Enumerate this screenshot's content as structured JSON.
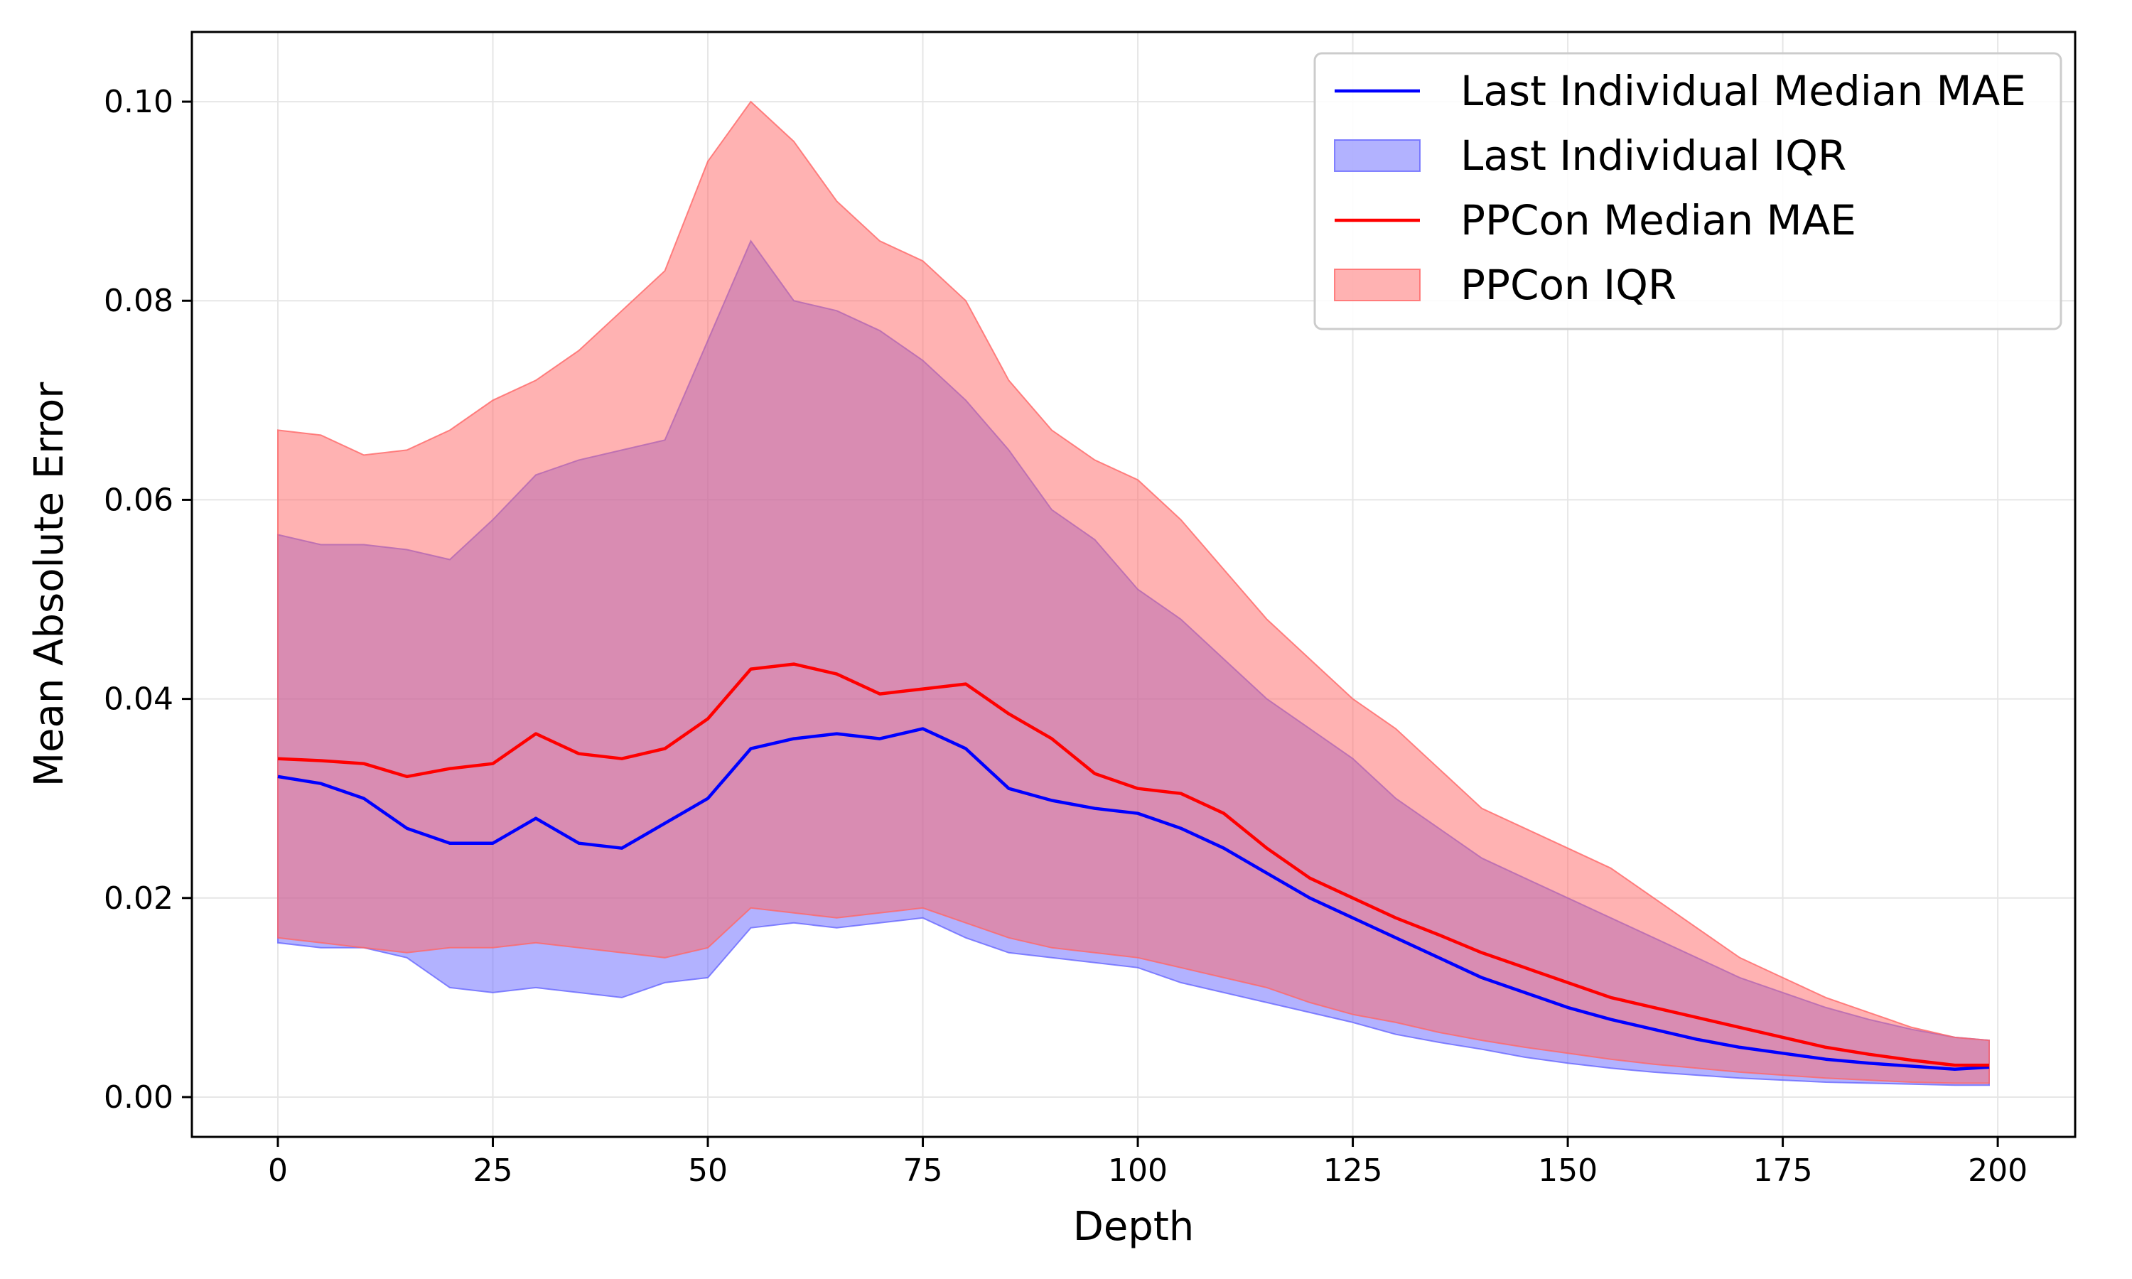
{
  "chart_data": {
    "type": "line",
    "xlabel": "Depth",
    "ylabel": "Mean Absolute Error",
    "xlim": [
      -10,
      209
    ],
    "ylim": [
      -0.004,
      0.107
    ],
    "xticks": [
      0,
      25,
      50,
      75,
      100,
      125,
      150,
      175,
      200
    ],
    "xtick_labels": [
      "0",
      "25",
      "50",
      "75",
      "100",
      "125",
      "150",
      "175",
      "200"
    ],
    "yticks": [
      0.0,
      0.02,
      0.04,
      0.06,
      0.08,
      0.1
    ],
    "ytick_labels": [
      "0.00",
      "0.02",
      "0.04",
      "0.06",
      "0.08",
      "0.10"
    ],
    "grid": true,
    "legend_position": "top-right",
    "x": [
      0,
      5,
      10,
      15,
      20,
      25,
      30,
      35,
      40,
      45,
      50,
      55,
      60,
      65,
      70,
      75,
      80,
      85,
      90,
      95,
      100,
      105,
      110,
      115,
      120,
      125,
      130,
      135,
      140,
      145,
      150,
      155,
      160,
      165,
      170,
      175,
      180,
      185,
      190,
      195,
      199
    ],
    "series": [
      {
        "name": "Last Individual Median MAE",
        "kind": "line",
        "color": "#0000ff",
        "values": [
          0.0322,
          0.0315,
          0.03,
          0.027,
          0.0255,
          0.0255,
          0.028,
          0.0255,
          0.025,
          0.0275,
          0.03,
          0.035,
          0.036,
          0.0365,
          0.036,
          0.037,
          0.035,
          0.031,
          0.0298,
          0.029,
          0.0285,
          0.027,
          0.025,
          0.0225,
          0.02,
          0.018,
          0.016,
          0.014,
          0.012,
          0.0105,
          0.009,
          0.0078,
          0.0068,
          0.0058,
          0.005,
          0.0044,
          0.0038,
          0.0034,
          0.0031,
          0.0028,
          0.003
        ]
      },
      {
        "name": "Last Individual IQR",
        "kind": "band",
        "color": "#6666ff",
        "lower": [
          0.0155,
          0.015,
          0.015,
          0.014,
          0.011,
          0.0105,
          0.011,
          0.0105,
          0.01,
          0.0115,
          0.012,
          0.017,
          0.0175,
          0.017,
          0.0175,
          0.018,
          0.016,
          0.0145,
          0.014,
          0.0135,
          0.013,
          0.0115,
          0.0105,
          0.0095,
          0.0085,
          0.0075,
          0.0063,
          0.0055,
          0.0048,
          0.004,
          0.0034,
          0.0029,
          0.0025,
          0.0022,
          0.0019,
          0.0017,
          0.0015,
          0.0014,
          0.0013,
          0.0012,
          0.0012
        ],
        "upper": [
          0.0565,
          0.0555,
          0.0555,
          0.055,
          0.054,
          0.058,
          0.0625,
          0.064,
          0.065,
          0.066,
          0.076,
          0.086,
          0.08,
          0.079,
          0.077,
          0.074,
          0.07,
          0.065,
          0.059,
          0.056,
          0.051,
          0.048,
          0.044,
          0.04,
          0.037,
          0.034,
          0.03,
          0.027,
          0.024,
          0.022,
          0.02,
          0.018,
          0.016,
          0.014,
          0.012,
          0.0105,
          0.009,
          0.0078,
          0.0068,
          0.006,
          0.0057
        ]
      },
      {
        "name": "PPCon Median MAE",
        "kind": "line",
        "color": "#ff0000",
        "values": [
          0.034,
          0.0338,
          0.0335,
          0.0322,
          0.033,
          0.0335,
          0.0365,
          0.0345,
          0.034,
          0.035,
          0.038,
          0.043,
          0.0435,
          0.0425,
          0.0405,
          0.041,
          0.0415,
          0.0385,
          0.036,
          0.0325,
          0.031,
          0.0305,
          0.0285,
          0.025,
          0.022,
          0.02,
          0.018,
          0.0163,
          0.0145,
          0.013,
          0.0115,
          0.01,
          0.009,
          0.008,
          0.007,
          0.006,
          0.005,
          0.0043,
          0.0037,
          0.0032,
          0.0032
        ]
      },
      {
        "name": "PPCon IQR",
        "kind": "band",
        "color": "#ff6666",
        "lower": [
          0.016,
          0.0155,
          0.015,
          0.0145,
          0.015,
          0.015,
          0.0155,
          0.015,
          0.0145,
          0.014,
          0.015,
          0.019,
          0.0185,
          0.018,
          0.0185,
          0.019,
          0.0175,
          0.016,
          0.015,
          0.0145,
          0.014,
          0.013,
          0.012,
          0.011,
          0.0095,
          0.0083,
          0.0075,
          0.0065,
          0.0057,
          0.005,
          0.0044,
          0.0038,
          0.0033,
          0.0029,
          0.0025,
          0.0022,
          0.0019,
          0.0017,
          0.0015,
          0.0014,
          0.0014
        ],
        "upper": [
          0.067,
          0.0665,
          0.0645,
          0.065,
          0.067,
          0.07,
          0.072,
          0.075,
          0.079,
          0.083,
          0.094,
          0.1,
          0.096,
          0.09,
          0.086,
          0.084,
          0.08,
          0.072,
          0.067,
          0.064,
          0.062,
          0.058,
          0.053,
          0.048,
          0.044,
          0.04,
          0.037,
          0.033,
          0.029,
          0.027,
          0.025,
          0.023,
          0.02,
          0.017,
          0.014,
          0.012,
          0.01,
          0.0085,
          0.007,
          0.006,
          0.0057
        ]
      }
    ]
  }
}
